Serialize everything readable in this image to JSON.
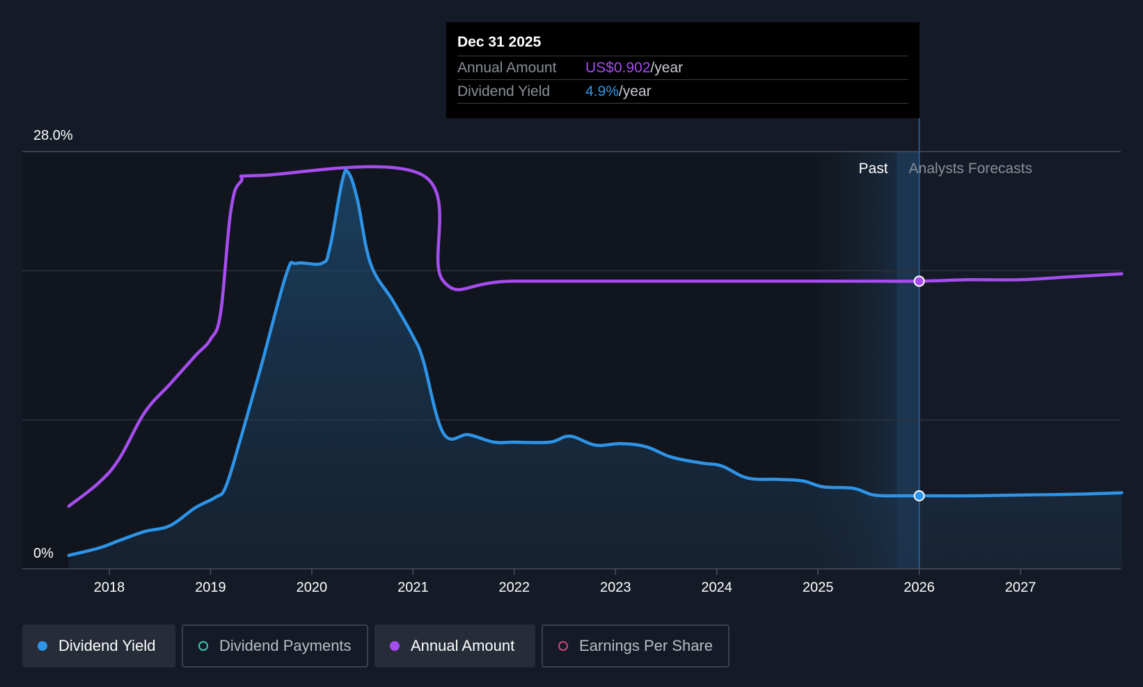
{
  "chart_data": {
    "type": "line",
    "y_axis": {
      "top_label": "28.0%",
      "bottom_label": "0%",
      "ylim": [
        0,
        28
      ]
    },
    "x_axis": {
      "range": [
        2017.6,
        2028.0
      ],
      "tick_labels": [
        "2018",
        "2019",
        "2020",
        "2021",
        "2022",
        "2023",
        "2024",
        "2025",
        "2026",
        "2027"
      ],
      "tick_values": [
        2018,
        2019,
        2020,
        2021,
        2022,
        2023,
        2024,
        2025,
        2026,
        2027
      ]
    },
    "regions": {
      "past_label": "Past",
      "forecast_label": "Analysts Forecasts",
      "divider_x": 2026.0,
      "past_shade_start": 2025.0
    },
    "series": [
      {
        "name": "Dividend Yield",
        "color": "#2e94e8",
        "points": [
          [
            2017.6,
            0.9
          ],
          [
            2017.9,
            1.4
          ],
          [
            2018.1,
            1.9
          ],
          [
            2018.35,
            2.5
          ],
          [
            2018.6,
            2.9
          ],
          [
            2018.85,
            4.1
          ],
          [
            2019.05,
            4.8
          ],
          [
            2019.15,
            5.5
          ],
          [
            2019.3,
            8.8
          ],
          [
            2019.5,
            13.6
          ],
          [
            2019.75,
            19.8
          ],
          [
            2019.85,
            20.5
          ],
          [
            2020.1,
            20.5
          ],
          [
            2020.18,
            21.6
          ],
          [
            2020.3,
            26.0
          ],
          [
            2020.36,
            26.6
          ],
          [
            2020.45,
            24.8
          ],
          [
            2020.58,
            20.5
          ],
          [
            2020.8,
            18.0
          ],
          [
            2021.0,
            15.6
          ],
          [
            2021.1,
            14.0
          ],
          [
            2021.3,
            9.1
          ],
          [
            2021.55,
            9.0
          ],
          [
            2021.8,
            8.5
          ],
          [
            2022.0,
            8.5
          ],
          [
            2022.35,
            8.5
          ],
          [
            2022.55,
            8.9
          ],
          [
            2022.8,
            8.3
          ],
          [
            2023.05,
            8.4
          ],
          [
            2023.3,
            8.2
          ],
          [
            2023.55,
            7.5
          ],
          [
            2023.85,
            7.1
          ],
          [
            2024.05,
            6.9
          ],
          [
            2024.3,
            6.1
          ],
          [
            2024.6,
            6.0
          ],
          [
            2024.85,
            5.9
          ],
          [
            2025.05,
            5.5
          ],
          [
            2025.35,
            5.4
          ],
          [
            2025.55,
            4.95
          ],
          [
            2025.8,
            4.9
          ],
          [
            2026.0,
            4.9
          ],
          [
            2026.5,
            4.9
          ],
          [
            2027.0,
            4.95
          ],
          [
            2027.5,
            5.0
          ],
          [
            2028.0,
            5.1
          ]
        ],
        "marker_at": [
          2026.0,
          4.9
        ]
      },
      {
        "name": "Annual Amount",
        "color": "#a64df0",
        "points": [
          [
            2017.6,
            4.2
          ],
          [
            2017.9,
            5.8
          ],
          [
            2018.1,
            7.4
          ],
          [
            2018.35,
            10.5
          ],
          [
            2018.6,
            12.4
          ],
          [
            2018.85,
            14.3
          ],
          [
            2019.0,
            15.4
          ],
          [
            2019.1,
            17.2
          ],
          [
            2019.2,
            24.0
          ],
          [
            2019.3,
            26.0
          ],
          [
            2019.5,
            26.4
          ],
          [
            2021.1,
            26.4
          ],
          [
            2021.3,
            19.3
          ],
          [
            2022.0,
            19.3
          ],
          [
            2024.0,
            19.3
          ],
          [
            2025.5,
            19.3
          ],
          [
            2026.0,
            19.3
          ],
          [
            2026.5,
            19.4
          ],
          [
            2027.0,
            19.4
          ],
          [
            2027.5,
            19.6
          ],
          [
            2028.0,
            19.8
          ]
        ],
        "marker_at": [
          2026.0,
          19.3
        ]
      }
    ]
  },
  "tooltip": {
    "date": "Dec 31 2025",
    "rows": [
      {
        "key": "Annual Amount",
        "value": "US$0.902",
        "unit": "/year"
      },
      {
        "key": "Dividend Yield",
        "value": "4.9%",
        "unit": "/year"
      }
    ]
  },
  "legend": [
    {
      "label": "Dividend Yield",
      "color": "#2e94e8",
      "active": true
    },
    {
      "label": "Dividend Payments",
      "color": "#38c7b4",
      "active": false
    },
    {
      "label": "Annual Amount",
      "color": "#a64df0",
      "active": true
    },
    {
      "label": "Earnings Per Share",
      "color": "#d2467e",
      "active": false
    }
  ]
}
